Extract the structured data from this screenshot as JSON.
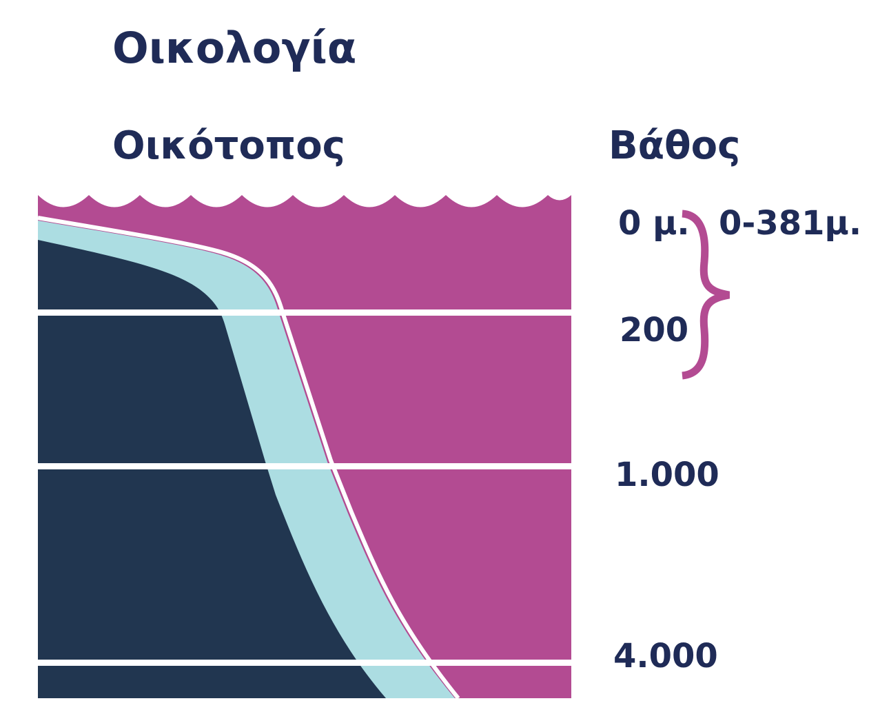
{
  "title": "Οικολογία",
  "headers": {
    "habitat": "Οικότοπος",
    "depth": "Βάθος"
  },
  "depth_labels": [
    "0 μ.",
    "200",
    "1.000",
    "4.000"
  ],
  "range_label": "0-381μ.",
  "colors": {
    "text": "#1f2b57",
    "ocean": "#b34b92",
    "seafloor": "#213650",
    "shelf_band": "#acdde2",
    "lines": "#ffffff",
    "brace": "#b34b92"
  }
}
